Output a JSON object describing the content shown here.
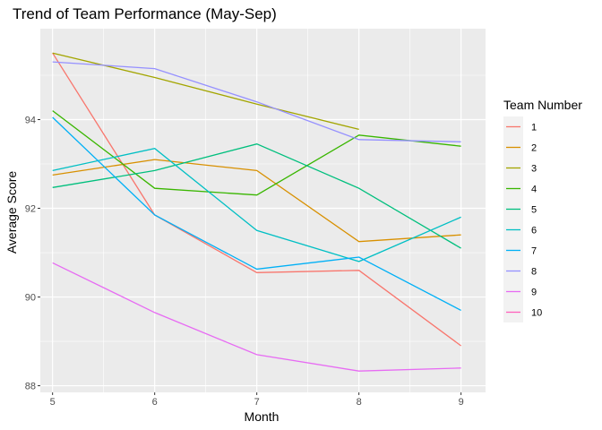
{
  "chart_data": {
    "type": "line",
    "title": "Trend of Team Performance (May-Sep)",
    "xlabel": "Month",
    "ylabel": "Average Score",
    "x": [
      5,
      6,
      7,
      8,
      9
    ],
    "xlim": [
      4.88,
      9.24
    ],
    "ylim": [
      87.85,
      96.05
    ],
    "x_ticks": [
      5,
      6,
      7,
      8,
      9
    ],
    "y_ticks": [
      88,
      90,
      92,
      94
    ],
    "grid": true,
    "legend_title": "Team Number",
    "legend_position": "right",
    "series": [
      {
        "name": "1",
        "color": "#F8766D",
        "values": [
          95.5,
          91.85,
          90.55,
          90.6,
          88.9
        ]
      },
      {
        "name": "2",
        "color": "#D89000",
        "values": [
          92.75,
          93.1,
          92.85,
          91.25,
          91.4
        ]
      },
      {
        "name": "3",
        "color": "#A3A500",
        "values": [
          95.5,
          94.95,
          94.35,
          93.78,
          null
        ]
      },
      {
        "name": "4",
        "color": "#39B600",
        "values": [
          94.2,
          92.45,
          92.3,
          93.65,
          93.4
        ]
      },
      {
        "name": "5",
        "color": "#00BF7D",
        "values": [
          92.47,
          92.85,
          93.45,
          92.45,
          91.1
        ]
      },
      {
        "name": "6",
        "color": "#00BFC4",
        "values": [
          92.85,
          93.35,
          91.5,
          90.8,
          91.8
        ]
      },
      {
        "name": "7",
        "color": "#00B0F6",
        "values": [
          94.05,
          91.85,
          90.63,
          90.9,
          89.7
        ]
      },
      {
        "name": "8",
        "color": "#9590FF",
        "values": [
          95.3,
          95.15,
          94.4,
          93.55,
          93.5
        ]
      },
      {
        "name": "9",
        "color": "#E76BF3",
        "values": [
          90.77,
          89.65,
          88.7,
          88.33,
          88.4
        ]
      },
      {
        "name": "10",
        "color": "#FF62BC",
        "values": [
          null,
          null,
          null,
          null,
          null
        ]
      }
    ]
  }
}
